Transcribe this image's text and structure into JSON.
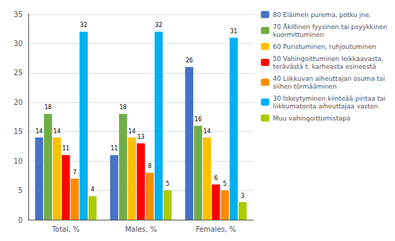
{
  "chart_data": {
    "type": "bar",
    "categories": [
      "Total, %",
      "Males, %",
      "Females, %"
    ],
    "series": [
      {
        "name": "80 Eläimen purema, potku jne.",
        "color": "#4472C4",
        "values": [
          14,
          11,
          26
        ]
      },
      {
        "name": "70 Äkillinen fyysinen tai psyykkinen\nkuormittuminen",
        "color": "#70AD47",
        "values": [
          18,
          18,
          16
        ]
      },
      {
        "name": "60 Puristuminen, ruhjoutuminen",
        "color": "#FFC000",
        "values": [
          14,
          14,
          14
        ]
      },
      {
        "name": "50 Vahingoittuminen leikkaavasta,\nterävästä t. karheasta esineestä",
        "color": "#FF0000",
        "values": [
          11,
          13,
          6
        ]
      },
      {
        "name": "40 Liikkuvan aiheuttajan osuma tai\nsiihen törmääminen",
        "color": "#FF8C00",
        "values": [
          7,
          8,
          5
        ]
      },
      {
        "name": "30 Iskeytyminen kiinteää pintaa tai\nliikkumatonta aiheuttajaa vasten",
        "color": "#00B0F0",
        "values": [
          32,
          32,
          31
        ]
      },
      {
        "name": "Muu vahingoittumistapa",
        "color": "#AACC00",
        "values": [
          4,
          5,
          3
        ]
      }
    ],
    "ylim": [
      0,
      35
    ],
    "yticks": [
      0,
      5,
      10,
      15,
      20,
      25,
      30,
      35
    ],
    "grid": true,
    "legend": "right",
    "data_labels": true
  }
}
